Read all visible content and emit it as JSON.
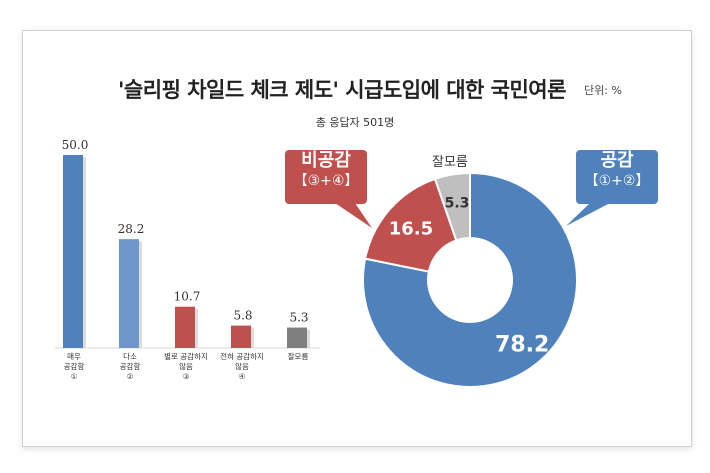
{
  "title": "'슬리핑 차일드 체크 제도' 시급도입에 대한 국민여론",
  "unit": "단위: %",
  "subtitle": "총 응답자 501명",
  "chart_data": [
    {
      "type": "bar",
      "categories": [
        "매우 공감함 ①",
        "다소 공감함 ②",
        "별로 공감하지 않음 ③",
        "전혀 공감하지 않음 ④",
        "잘모름"
      ],
      "category_lines": [
        [
          "매우",
          "공감함",
          "①"
        ],
        [
          "다소",
          "공감함",
          "②"
        ],
        [
          "별로 공감하지",
          "않음",
          "③"
        ],
        [
          "전혀 공감하지",
          "않음",
          "④"
        ],
        [
          "잘모름"
        ]
      ],
      "values": [
        50.0,
        28.2,
        10.7,
        5.8,
        5.3
      ],
      "value_labels": [
        "50.0",
        "28.2",
        "10.7",
        "5.8",
        "5.3"
      ],
      "colors": [
        "#4f81bd",
        "#7097c9",
        "#c0504d",
        "#c0504d",
        "#7f7f7f"
      ],
      "ylim": [
        0,
        50
      ],
      "grid": false
    },
    {
      "type": "pie",
      "donut": true,
      "labels": [
        "공감 (①+②)",
        "비공감 (③+④)",
        "잘모름"
      ],
      "values": [
        78.2,
        16.5,
        5.3
      ],
      "value_labels": [
        "78.2",
        "16.5",
        "5.3"
      ],
      "colors": [
        "#4f81bd",
        "#c0504d",
        "#bfbfbf"
      ]
    }
  ],
  "callouts": {
    "positive": {
      "title": "공감",
      "sub": "【①+②】",
      "color": "#4f81bd"
    },
    "negative": {
      "title": "비공감",
      "sub": "【③+④】",
      "color": "#c0504d"
    },
    "dont_know": {
      "title": "잘모름"
    }
  }
}
